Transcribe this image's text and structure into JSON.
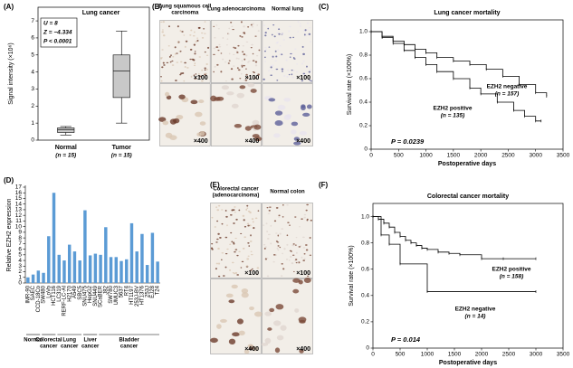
{
  "chart_data": [
    {
      "type": "box",
      "panel": "(A)",
      "title": "Lung cancer",
      "y_label": "Signal intensity (×10⁶)",
      "categories": [
        "Normal",
        "Tumor"
      ],
      "n_labels": [
        "(n = 15)",
        "(n = 15)"
      ],
      "boxes": [
        {
          "min": 0.3,
          "q1": 0.45,
          "median": 0.6,
          "q3": 0.72,
          "max": 0.8
        },
        {
          "min": 1.0,
          "q1": 2.5,
          "median": 4.05,
          "q3": 5.0,
          "max": 6.4
        }
      ],
      "color": "#c8c8c8",
      "annotations": [
        "U = 8",
        "Z = −4.334",
        "P < 0.0001"
      ],
      "ylim": [
        0,
        7.8
      ],
      "yticks": [
        0,
        1,
        2,
        3,
        4,
        5,
        6,
        7
      ]
    },
    {
      "type": "image",
      "panel": "(B)",
      "columns": [
        {
          "title": [
            "Lung squamous cell",
            "carcinoma"
          ],
          "magnifications": [
            "×100",
            "×400"
          ]
        },
        {
          "title": [
            "Lung adenocarcinoma"
          ],
          "magnifications": [
            "×100",
            "×400"
          ]
        },
        {
          "title": [
            "Normal lung"
          ],
          "magnifications": [
            "×100",
            "×400"
          ]
        }
      ]
    },
    {
      "type": "survival",
      "panel": "(C)",
      "title": "Lung cancer mortality",
      "x_label": "Postoperative days",
      "y_label": "Survival rate (×100%)",
      "series": [
        {
          "name": "EZH2 negative",
          "n_label": "(n = 157)",
          "color": "#000000",
          "x": [
            0,
            200,
            400,
            600,
            800,
            1000,
            1200,
            1500,
            1800,
            2100,
            2400,
            2700,
            3000,
            3200
          ],
          "values": [
            1.0,
            0.96,
            0.92,
            0.89,
            0.85,
            0.82,
            0.78,
            0.75,
            0.72,
            0.68,
            0.62,
            0.55,
            0.48,
            0.45
          ]
        },
        {
          "name": "EZH2 positive",
          "n_label": "(n = 135)",
          "color": "#000000",
          "x": [
            0,
            200,
            400,
            600,
            800,
            1000,
            1200,
            1500,
            1800,
            2000,
            2300,
            2600,
            2800,
            3000,
            3100
          ],
          "values": [
            1.0,
            0.95,
            0.9,
            0.84,
            0.78,
            0.72,
            0.66,
            0.6,
            0.52,
            0.47,
            0.4,
            0.33,
            0.28,
            0.24,
            0.24
          ]
        }
      ],
      "p_value": "P = 0.0239",
      "xlim": [
        0,
        3500
      ],
      "xticks": [
        0,
        500,
        1000,
        1500,
        2000,
        2500,
        3000,
        3500
      ],
      "ylim": [
        0,
        1.1
      ],
      "yticks": [
        0,
        0.2,
        0.4,
        0.6,
        0.8,
        {
          "value": 1,
          "label": "1.0"
        }
      ]
    },
    {
      "type": "bar",
      "panel": "(D)",
      "y_label": "Relative EZH2 expression",
      "categories": [
        "IMR-90",
        "SAEC",
        "CCD-18Co",
        "SW480",
        "LoVo",
        "HCT116",
        "LC319",
        "RERF-LC-AI",
        "H2170",
        "A549",
        "SBC5",
        "SNU475",
        "HepG2",
        "SNU449",
        "SCaBER",
        "J82",
        "SW780",
        "UMUC3",
        "5637",
        "RT4",
        "HT1197",
        "253J-BV",
        "HT1376",
        "253J",
        "EJ28",
        "T24"
      ],
      "values": [
        1,
        1.5,
        2.2,
        1.8,
        8.3,
        16,
        5,
        4,
        6.8,
        5.6,
        4,
        12.9,
        4.9,
        5.2,
        5,
        9.9,
        4.6,
        4.6,
        3.9,
        4.2,
        10.6,
        5.6,
        8.7,
        3.2,
        8.9,
        3.8
      ],
      "color": "#5b9bd5",
      "label_colors": [
        "#000000",
        "#000000",
        "#000000",
        "#e0262b",
        "#e0262b",
        "#e0262b",
        "#000000",
        "#000000",
        "#000000",
        "#000000",
        "#000000",
        "#000000",
        "#000000",
        "#000000",
        "#000000",
        "#000000",
        "#000000",
        "#000000",
        "#000000",
        "#000000",
        "#000000",
        "#000000",
        "#000000",
        "#000000",
        "#000000",
        "#000000"
      ],
      "groups": [
        {
          "lines": [
            "Normal"
          ],
          "color": "#000000"
        },
        {
          "lines": [
            "Colorectal",
            "cancer"
          ],
          "color": "#e0262b"
        },
        {
          "lines": [
            "Lung",
            "cancer"
          ],
          "color": "#000000"
        },
        {
          "lines": [
            "Liver",
            "cancer"
          ],
          "color": "#000000"
        },
        {
          "lines": [
            "Bladder",
            "cancer"
          ],
          "color": "#000000"
        }
      ],
      "ylim": [
        0,
        17
      ],
      "yticks": [
        0,
        1,
        2,
        3,
        4,
        5,
        6,
        7,
        8,
        9,
        10,
        11,
        12,
        13,
        14,
        15,
        16,
        17
      ]
    },
    {
      "type": "image",
      "panel": "(E)",
      "columns": [
        {
          "title": [
            "Colorectal cancer",
            "(adenocarcinoma)"
          ],
          "magnifications": [
            "×100",
            "×400"
          ]
        },
        {
          "title": [
            "Normal colon"
          ],
          "magnifications": [
            "×100",
            "×400"
          ]
        }
      ]
    },
    {
      "type": "survival",
      "panel": "(F)",
      "title": "Colorectal cancer mortality",
      "x_label": "Postoperative days",
      "y_label": "Survival rate (×100%)",
      "series": [
        {
          "name": "EZH2 positive",
          "n_label": "(n = 158)",
          "color": "#000000",
          "x": [
            0,
            100,
            200,
            300,
            400,
            500,
            600,
            700,
            800,
            900,
            1000,
            1200,
            1400,
            1600,
            2000,
            2400,
            3000
          ],
          "values": [
            1.0,
            0.98,
            0.95,
            0.92,
            0.88,
            0.85,
            0.82,
            0.8,
            0.78,
            0.76,
            0.75,
            0.73,
            0.72,
            0.71,
            0.68,
            0.68,
            0.68
          ]
        },
        {
          "name": "EZH2 negative",
          "n_label": "(n = 14)",
          "color": "#000000",
          "x": [
            0,
            150,
            300,
            500,
            1000,
            3000
          ],
          "values": [
            1.0,
            0.86,
            0.79,
            0.64,
            0.43,
            0.43
          ]
        }
      ],
      "p_value": "P = 0.014",
      "xlim": [
        0,
        3500
      ],
      "xticks": [
        0,
        500,
        1000,
        1500,
        2000,
        2500,
        3000,
        3500
      ],
      "ylim": [
        0,
        1.1
      ],
      "yticks": [
        0,
        0.2,
        0.4,
        0.6,
        0.8,
        {
          "value": 1,
          "label": "1.0"
        }
      ]
    }
  ]
}
